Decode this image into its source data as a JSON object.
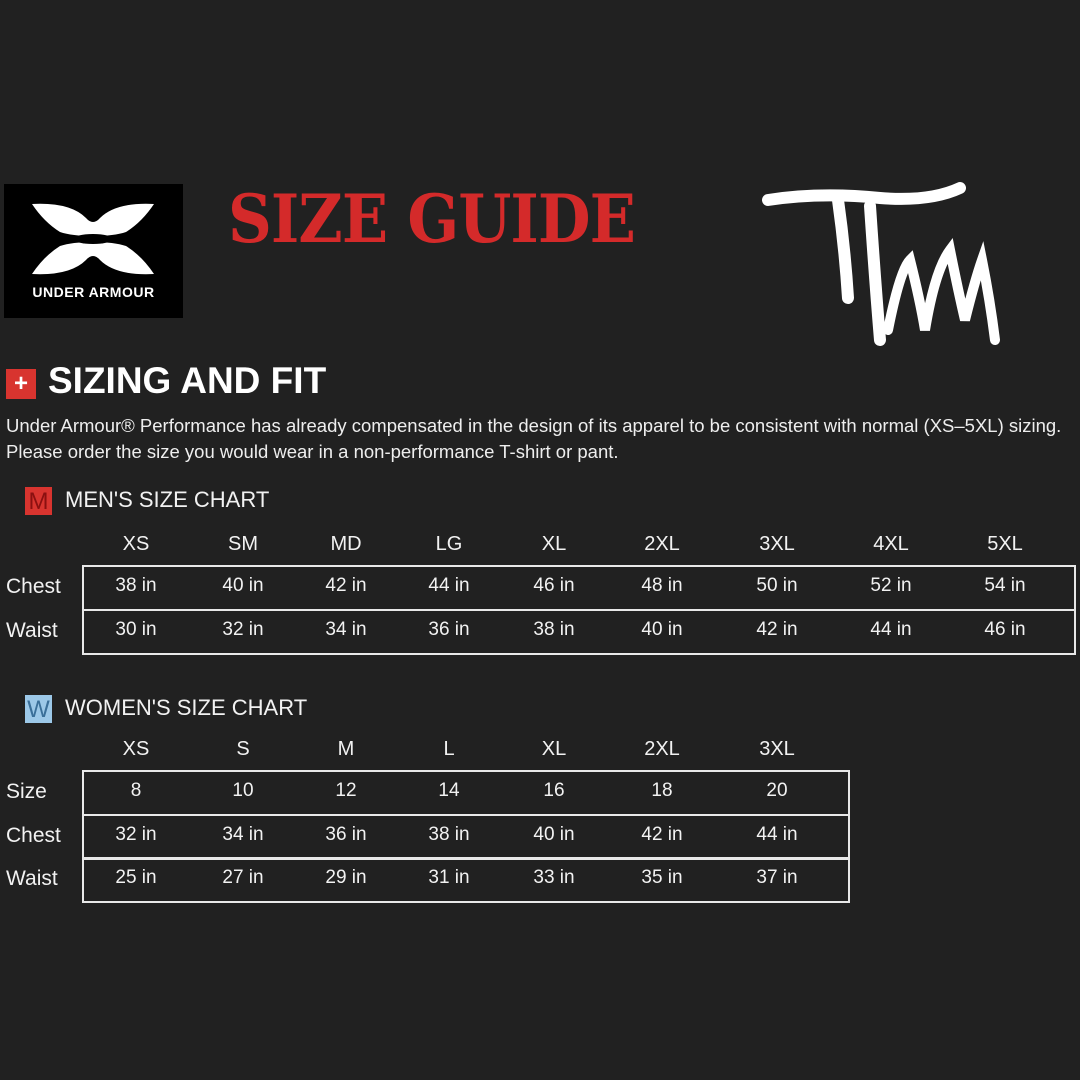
{
  "logo": {
    "brand": "UNDER ARMOUR",
    "mark": "TM"
  },
  "title": "SIZE GUIDE",
  "fit": {
    "icon": "+",
    "title": "SIZING AND FIT",
    "description": "Under Armour® Performance has already compensated in the design of its apparel to be consistent with normal (XS–5XL) sizing. Please order the size you would wear in a non-performance T-shirt or pant."
  },
  "colors": {
    "background": "#212121",
    "accent_red": "#d42a2a",
    "women_badge": "#9cc8e8"
  },
  "men": {
    "badge": "M",
    "title": "MEN'S SIZE CHART",
    "headers": [
      "XS",
      "SM",
      "MD",
      "LG",
      "XL",
      "2XL",
      "3XL",
      "4XL",
      "5XL"
    ],
    "rows": [
      {
        "label": "Chest",
        "values": [
          "38 in",
          "40 in",
          "42 in",
          "44 in",
          "46 in",
          "48 in",
          "50 in",
          "52 in",
          "54 in"
        ]
      },
      {
        "label": "Waist",
        "values": [
          "30 in",
          "32 in",
          "34 in",
          "36 in",
          "38 in",
          "40 in",
          "42 in",
          "44 in",
          "46 in"
        ]
      }
    ]
  },
  "women": {
    "badge": "W",
    "title": "WOMEN'S SIZE CHART",
    "headers": [
      "XS",
      "S",
      "M",
      "L",
      "XL",
      "2XL",
      "3XL"
    ],
    "rows": [
      {
        "label": "Size",
        "values": [
          "8",
          "10",
          "12",
          "14",
          "16",
          "18",
          "20"
        ]
      },
      {
        "label": "Chest",
        "values": [
          "32 in",
          "34 in",
          "36 in",
          "38 in",
          "40 in",
          "42 in",
          "44 in"
        ]
      },
      {
        "label": "Waist",
        "values": [
          "25 in",
          "27 in",
          "29 in",
          "31 in",
          "33 in",
          "35 in",
          "37 in"
        ]
      }
    ]
  }
}
